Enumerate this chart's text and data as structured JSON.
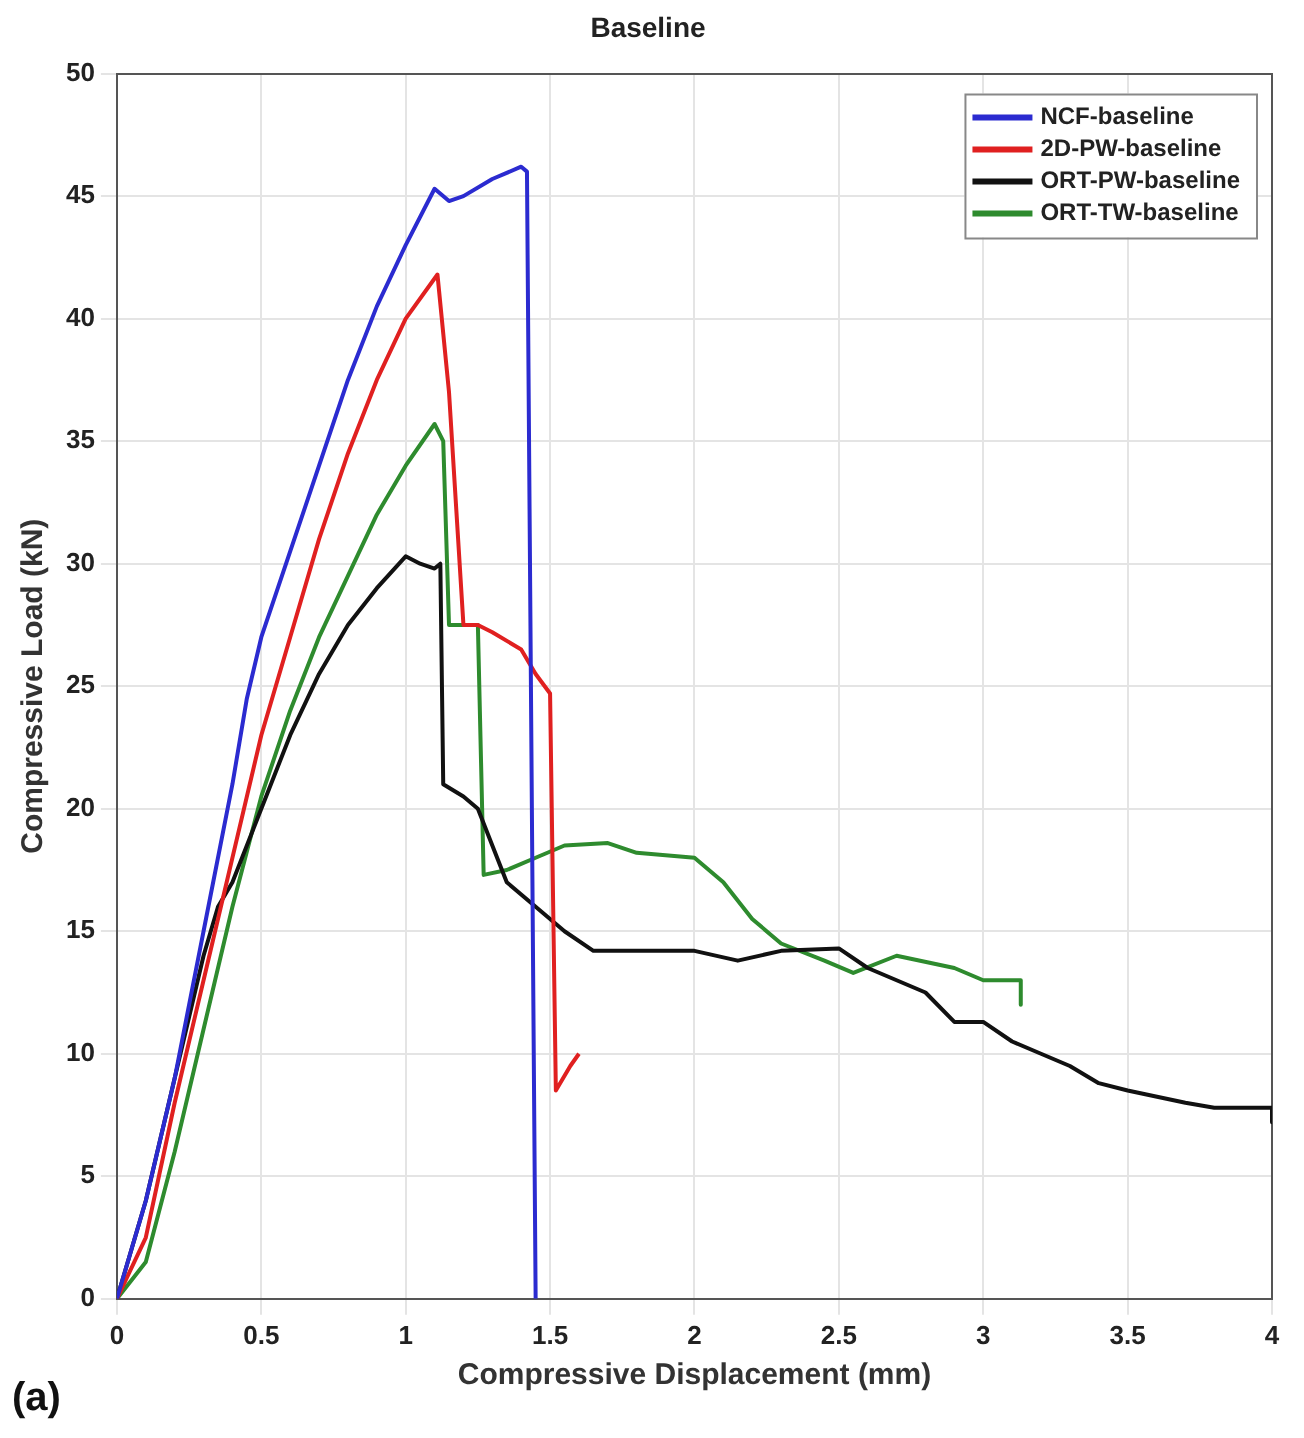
{
  "chart_data": {
    "type": "line",
    "title": "Baseline",
    "xlabel": "Compressive Displacement (mm)",
    "ylabel": "Compressive Load (kN)",
    "xlim": [
      0,
      4
    ],
    "xticks": [
      0,
      0.5,
      1,
      1.5,
      2,
      2.5,
      3,
      3.5,
      4
    ],
    "ylim": [
      0,
      50
    ],
    "yticks": [
      0,
      5,
      10,
      15,
      20,
      25,
      30,
      35,
      40,
      45,
      50
    ],
    "grid": true,
    "legend": "top right",
    "marker": "none",
    "line_style": "solid",
    "annotations": [
      "(a)"
    ],
    "series": [
      {
        "name": "NCF-baseline",
        "color": "#2b2bd0",
        "x": [
          0,
          0.1,
          0.2,
          0.3,
          0.4,
          0.45,
          0.5,
          0.6,
          0.7,
          0.8,
          0.9,
          1.0,
          1.1,
          1.15,
          1.2,
          1.3,
          1.4,
          1.42,
          1.45
        ],
        "values": [
          0,
          4,
          9,
          15,
          21,
          24.5,
          27,
          30.5,
          34,
          37.5,
          40.5,
          43,
          45.3,
          44.8,
          45,
          45.7,
          46.2,
          46,
          0
        ]
      },
      {
        "name": "2D-PW-baseline",
        "color": "#e02020",
        "x": [
          0,
          0.1,
          0.2,
          0.3,
          0.4,
          0.5,
          0.6,
          0.7,
          0.8,
          0.9,
          1.0,
          1.11,
          1.15,
          1.2,
          1.25,
          1.3,
          1.4,
          1.45,
          1.5,
          1.52,
          1.57,
          1.6
        ],
        "values": [
          0,
          2.5,
          8,
          13,
          18,
          23,
          27,
          31,
          34.5,
          37.5,
          40,
          41.8,
          37,
          27.5,
          27.5,
          27.2,
          26.5,
          25.5,
          24.7,
          8.5,
          9.5,
          10
        ]
      },
      {
        "name": "ORT-PW-baseline",
        "color": "#111111",
        "x": [
          0,
          0.1,
          0.2,
          0.3,
          0.35,
          0.4,
          0.5,
          0.6,
          0.7,
          0.8,
          0.9,
          1.0,
          1.05,
          1.1,
          1.12,
          1.13,
          1.2,
          1.25,
          1.3,
          1.35,
          1.45,
          1.55,
          1.65,
          1.8,
          2.0,
          2.15,
          2.3,
          2.5,
          2.6,
          2.8,
          2.9,
          3.0,
          3.1,
          3.2,
          3.3,
          3.4,
          3.5,
          3.7,
          3.8,
          4.0,
          4.0
        ],
        "values": [
          0,
          4,
          9,
          14,
          16,
          17,
          20,
          23,
          25.5,
          27.5,
          29,
          30.3,
          30,
          29.8,
          30,
          21,
          20.5,
          20,
          18.5,
          17,
          16,
          15,
          14.2,
          14.2,
          14.2,
          13.8,
          14.2,
          14.3,
          13.5,
          12.5,
          11.3,
          11.3,
          10.5,
          10,
          9.5,
          8.8,
          8.5,
          8,
          7.8,
          7.8,
          7.2
        ]
      },
      {
        "name": "ORT-TW-baseline",
        "color": "#2e8b2e",
        "x": [
          0,
          0.1,
          0.2,
          0.3,
          0.4,
          0.5,
          0.6,
          0.7,
          0.8,
          0.9,
          1.0,
          1.1,
          1.13,
          1.15,
          1.25,
          1.27,
          1.35,
          1.45,
          1.55,
          1.7,
          1.8,
          2.0,
          2.1,
          2.2,
          2.3,
          2.45,
          2.55,
          2.7,
          2.9,
          3.0,
          3.1,
          3.13,
          3.13
        ],
        "values": [
          0,
          1.5,
          6,
          11,
          16,
          20.5,
          24,
          27,
          29.5,
          32,
          34,
          35.7,
          35,
          27.5,
          27.5,
          17.3,
          17.5,
          18,
          18.5,
          18.6,
          18.2,
          18,
          17,
          15.5,
          14.5,
          13.8,
          13.3,
          14,
          13.5,
          13,
          13,
          13,
          12
        ]
      }
    ]
  }
}
